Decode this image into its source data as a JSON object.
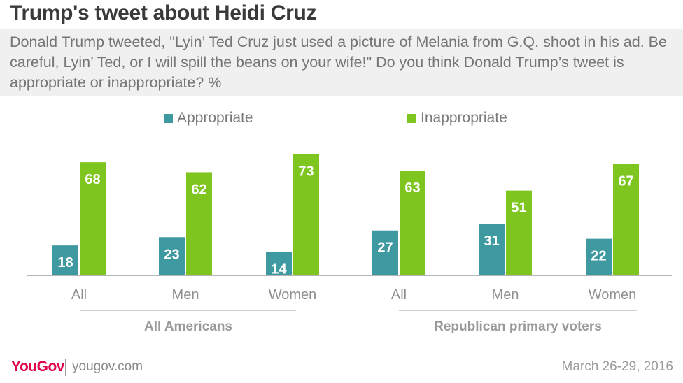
{
  "title": "Trump's tweet about Heidi Cruz",
  "subtitle": "Donald Trump tweeted, \"Lyin’ Ted Cruz just used a picture of Melania from G.Q. shoot in his ad. Be careful, Lyin’ Ted, or I will spill the beans on your wife!\" Do you think Donald Trump’s tweet is appropriate or inappropriate? %",
  "legend": {
    "appropriate": "Appropriate",
    "inappropriate": "Inappropriate"
  },
  "groups": {
    "all_americans": "All Americans",
    "republican_primary_voters": "Republican primary voters"
  },
  "footer": {
    "logo": "YouGov",
    "site": "yougov.com",
    "date": "March 26-29, 2016"
  },
  "colors": {
    "appropriate": "#3e9aa0",
    "inappropriate": "#7fc51f"
  },
  "chart_data": {
    "type": "bar",
    "categories": [
      "All",
      "Men",
      "Women",
      "All",
      "Men",
      "Women"
    ],
    "category_groups": [
      "All Americans",
      "All Americans",
      "All Americans",
      "Republican primary voters",
      "Republican primary voters",
      "Republican primary voters"
    ],
    "series": [
      {
        "name": "Appropriate",
        "values": [
          18,
          23,
          14,
          27,
          31,
          22
        ]
      },
      {
        "name": "Inappropriate",
        "values": [
          68,
          62,
          73,
          63,
          51,
          67
        ]
      }
    ],
    "ylim": [
      0,
      100
    ],
    "grid": false,
    "legend_position": "top-center"
  }
}
